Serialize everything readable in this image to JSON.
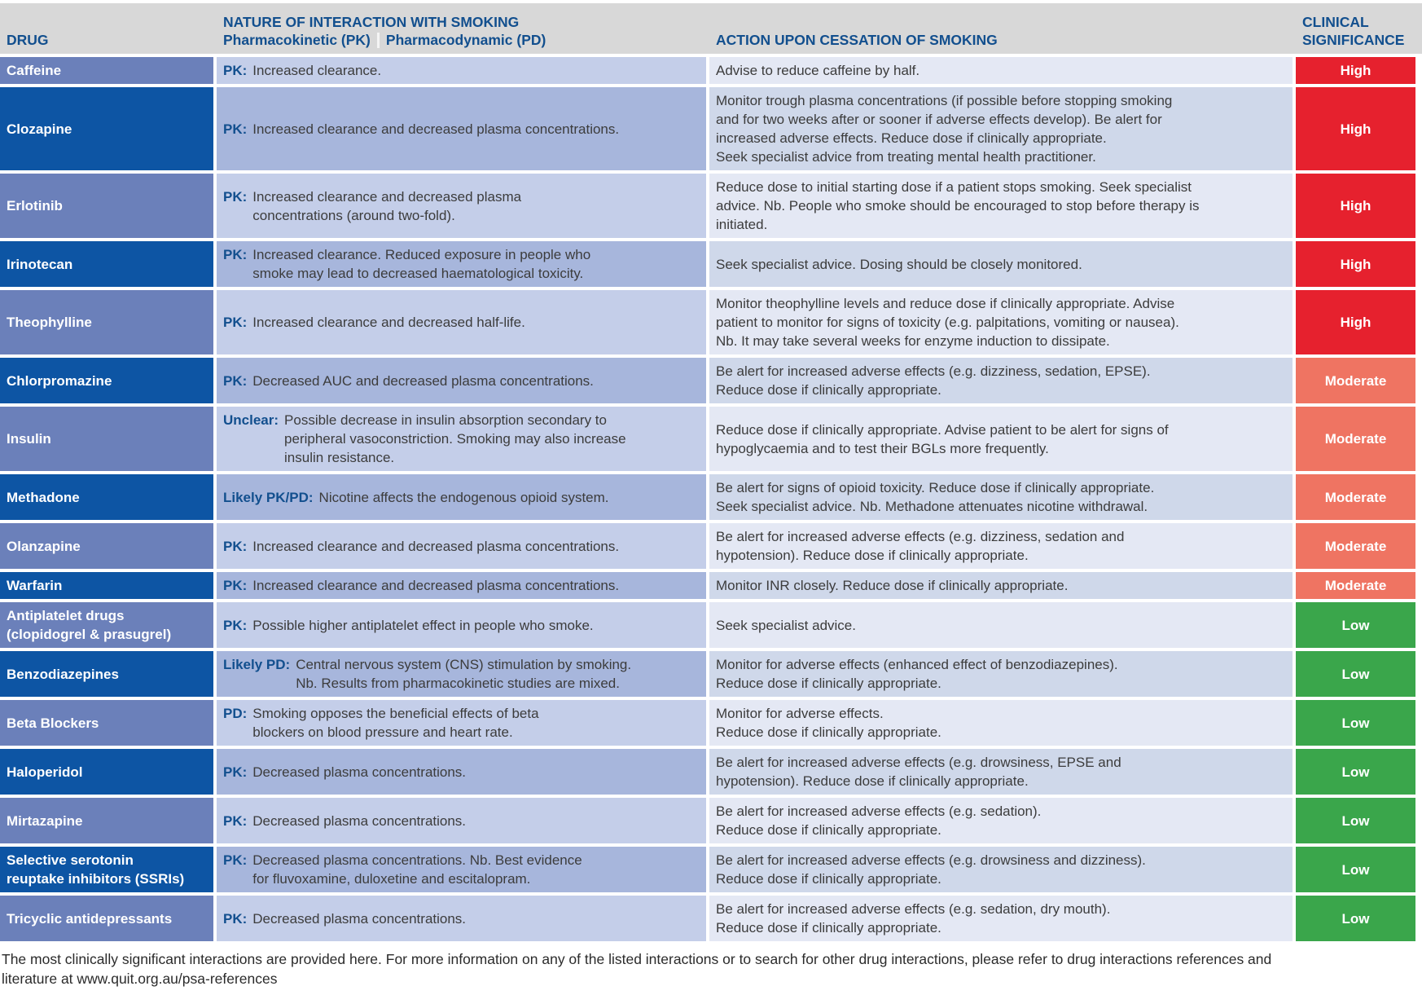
{
  "header": {
    "col_drug": "DRUG",
    "col_nature_title": "NATURE OF INTERACTION WITH SMOKING",
    "col_nature_pk": "Pharmacokinetic (PK)",
    "col_nature_pd": "Pharmacodynamic (PD)",
    "col_action": "ACTION UPON CESSATION OF SMOKING",
    "col_significance": "CLINICAL\nSIGNIFICANCE"
  },
  "rows": [
    {
      "drug": "Caffeine",
      "label": "PK:",
      "interaction": "Increased clearance.",
      "action": "Advise to reduce caffeine by half.",
      "significance": "High"
    },
    {
      "drug": "Clozapine",
      "label": "PK:",
      "interaction": "Increased clearance and decreased plasma concentrations.",
      "action": "Monitor trough plasma concentrations (if possible before stopping smoking\nand for two weeks after or sooner if adverse effects develop). Be alert for\nincreased adverse effects. Reduce dose if clinically appropriate.\nSeek specialist advice from treating mental health practitioner.",
      "significance": "High"
    },
    {
      "drug": "Erlotinib",
      "label": "PK:",
      "interaction": "Increased clearance and decreased plasma\nconcentrations (around two-fold).",
      "action": "Reduce dose to initial starting dose if a patient stops smoking. Seek specialist\nadvice. Nb. People who smoke should be encouraged to stop before therapy is\ninitiated.",
      "significance": "High"
    },
    {
      "drug": "Irinotecan",
      "label": "PK:",
      "interaction": "Increased clearance. Reduced exposure in people who\nsmoke may lead to decreased haematological toxicity.",
      "action": "Seek specialist advice. Dosing should be closely monitored.",
      "significance": "High"
    },
    {
      "drug": "Theophylline",
      "label": "PK:",
      "interaction": "Increased clearance and decreased half-life.",
      "action": "Monitor theophylline levels and reduce dose if clinically appropriate. Advise\npatient to monitor for signs of toxicity (e.g. palpitations, vomiting or nausea).\nNb. It may take several weeks for enzyme induction to dissipate.",
      "significance": "High"
    },
    {
      "drug": "Chlorpromazine",
      "label": "PK:",
      "interaction": "Decreased AUC and decreased plasma concentrations.",
      "action": "Be alert for increased adverse effects (e.g. dizziness, sedation, EPSE).\nReduce dose if clinically appropriate.",
      "significance": "Moderate"
    },
    {
      "drug": "Insulin",
      "label": "Unclear:",
      "interaction": "Possible decrease in insulin absorption secondary to\nperipheral vasoconstriction. Smoking may also increase\ninsulin resistance.",
      "action": "Reduce dose if clinically appropriate. Advise patient to be alert for signs of\nhypoglycaemia and to test their BGLs more frequently.",
      "significance": "Moderate"
    },
    {
      "drug": "Methadone",
      "label": "Likely PK/PD:",
      "interaction": "Nicotine affects the endogenous opioid system.",
      "action": "Be alert for signs of opioid toxicity. Reduce dose if clinically appropriate.\nSeek specialist advice. Nb. Methadone attenuates nicotine withdrawal.",
      "significance": "Moderate"
    },
    {
      "drug": "Olanzapine",
      "label": "PK:",
      "interaction": "Increased clearance and decreased plasma concentrations.",
      "action": "Be alert for increased adverse effects (e.g. dizziness, sedation and\nhypotension). Reduce dose if clinically appropriate.",
      "significance": "Moderate"
    },
    {
      "drug": "Warfarin",
      "label": "PK:",
      "interaction": "Increased clearance and decreased plasma concentrations.",
      "action": "Monitor INR closely. Reduce dose if clinically appropriate.",
      "significance": "Moderate"
    },
    {
      "drug": "Antiplatelet drugs\n(clopidogrel & prasugrel)",
      "label": "PK:",
      "interaction": "Possible higher antiplatelet effect in people who smoke.",
      "action": "Seek specialist advice.",
      "significance": "Low"
    },
    {
      "drug": "Benzodiazepines",
      "label": "Likely PD:",
      "interaction": "Central nervous system (CNS) stimulation by smoking.\nNb. Results from pharmacokinetic studies are mixed.",
      "action": "Monitor for adverse effects (enhanced effect of benzodiazepines).\nReduce dose if clinically appropriate.",
      "significance": "Low"
    },
    {
      "drug": "Beta Blockers",
      "label": "PD:",
      "interaction": "Smoking opposes the beneficial effects of beta\nblockers on blood pressure and heart rate.",
      "action": "Monitor for adverse effects.\nReduce dose if clinically appropriate.",
      "significance": "Low"
    },
    {
      "drug": "Haloperidol",
      "label": "PK:",
      "interaction": "Decreased plasma concentrations.",
      "action": "Be alert for increased adverse effects (e.g. drowsiness, EPSE and\nhypotension). Reduce dose if clinically appropriate.",
      "significance": "Low"
    },
    {
      "drug": "Mirtazapine",
      "label": "PK:",
      "interaction": "Decreased plasma concentrations.",
      "action": "Be alert for increased adverse effects (e.g. sedation).\nReduce dose if clinically appropriate.",
      "significance": "Low"
    },
    {
      "drug": "Selective serotonin\nreuptake inhibitors (SSRIs)",
      "label": "PK:",
      "interaction": "Decreased plasma concentrations. Nb. Best evidence\nfor fluvoxamine, duloxetine and escitalopram.",
      "action": "Be alert for increased adverse effects (e.g. drowsiness and dizziness).\nReduce dose if clinically appropriate.",
      "significance": "Low"
    },
    {
      "drug": "Tricyclic antidepressants",
      "label": "PK:",
      "interaction": "Decreased plasma concentrations.",
      "action": "Be alert for increased adverse effects (e.g. sedation, dry mouth).\nReduce dose if clinically appropriate.",
      "significance": "Low"
    }
  ],
  "footer": "The most clinically significant interactions are provided here. For more information on any of the listed interactions or to search for other drug interactions, please refer to drug interactions references and\nliterature at www.quit.org.au/psa-references",
  "colors": {
    "header_bg": "#d8d8d8",
    "navy_text": "#124f8e",
    "drug_row_medium_blue": "#6b80ba",
    "drug_row_dark_blue": "#0d55a4",
    "interaction_light": "#c4cee9",
    "interaction_medium": "#a7b6dc",
    "action_light": "#e4e8f4",
    "action_medium": "#cfd8ea",
    "significance_high": "#e6212e",
    "significance_moderate": "#ef7462",
    "significance_low": "#3aa64b"
  }
}
